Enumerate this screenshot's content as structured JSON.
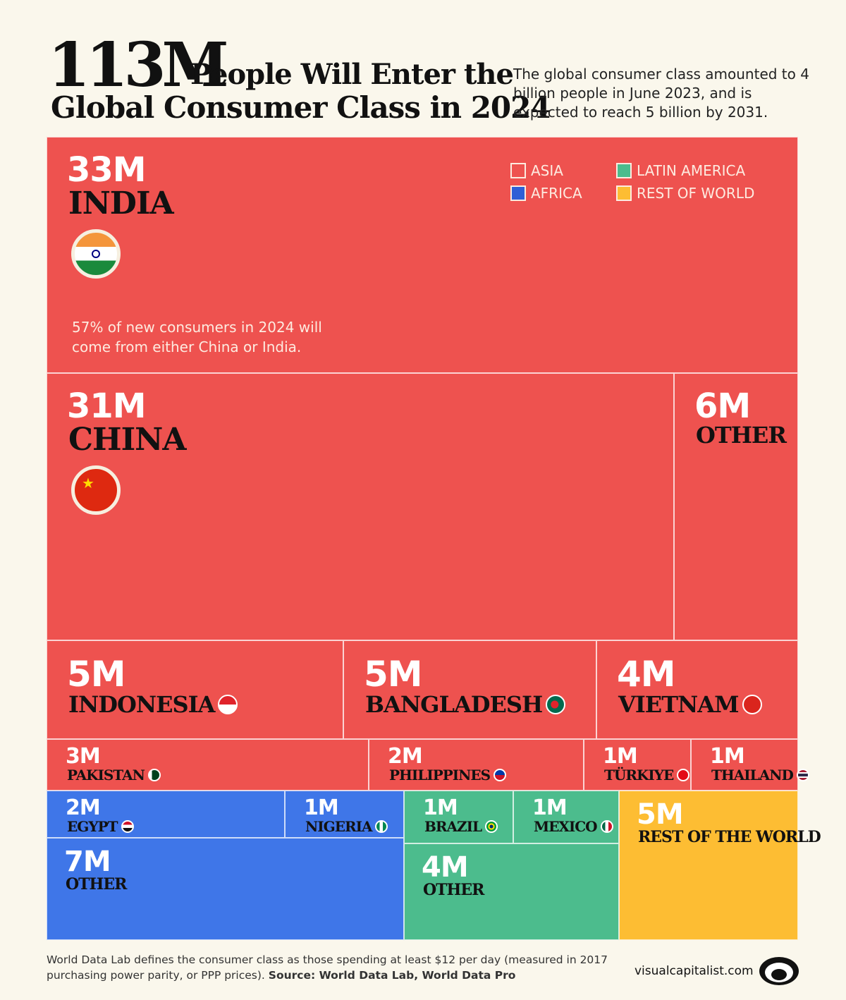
{
  "header": {
    "big": "113M",
    "line1": "People Will Enter the",
    "line2": "Global Consumer Class in 2024",
    "subtitle": "The global consumer class amounted to 4 billion people in June 2023, and is expected to reach 5 billion by 2031."
  },
  "legend": [
    {
      "label": "ASIA",
      "color": "#ee524f"
    },
    {
      "label": "LATIN AMERICA",
      "color": "#4cbc8d"
    },
    {
      "label": "AFRICA",
      "color": "#2f5fd6"
    },
    {
      "label": "REST OF WORLD",
      "color": "#fdbd33"
    }
  ],
  "note": "57% of new consumers in 2024 will come from either China or India.",
  "colors": {
    "asia": "#ee524f",
    "africa": "#3f76e8",
    "latin_america": "#4cbc8d",
    "rest_of_world": "#fdbd33"
  },
  "chart_data": {
    "type": "treemap",
    "unit": "M",
    "items": [
      {
        "value_label": "33M",
        "value": 33,
        "name": "INDIA",
        "region": "asia"
      },
      {
        "value_label": "31M",
        "value": 31,
        "name": "CHINA",
        "region": "asia"
      },
      {
        "value_label": "6M",
        "value": 6,
        "name": "OTHER",
        "region": "asia"
      },
      {
        "value_label": "5M",
        "value": 5,
        "name": "INDONESIA",
        "region": "asia"
      },
      {
        "value_label": "5M",
        "value": 5,
        "name": "BANGLADESH",
        "region": "asia"
      },
      {
        "value_label": "4M",
        "value": 4,
        "name": "VIETNAM",
        "region": "asia"
      },
      {
        "value_label": "3M",
        "value": 3,
        "name": "PAKISTAN",
        "region": "asia"
      },
      {
        "value_label": "2M",
        "value": 2,
        "name": "PHILIPPINES",
        "region": "asia"
      },
      {
        "value_label": "1M",
        "value": 1,
        "name": "TÜRKIYE",
        "region": "asia"
      },
      {
        "value_label": "1M",
        "value": 1,
        "name": "THAILAND",
        "region": "asia"
      },
      {
        "value_label": "2M",
        "value": 2,
        "name": "EGYPT",
        "region": "africa"
      },
      {
        "value_label": "1M",
        "value": 1,
        "name": "NIGERIA",
        "region": "africa"
      },
      {
        "value_label": "7M",
        "value": 7,
        "name": "OTHER",
        "region": "africa"
      },
      {
        "value_label": "1M",
        "value": 1,
        "name": "BRAZIL",
        "region": "latin_america"
      },
      {
        "value_label": "1M",
        "value": 1,
        "name": "MEXICO",
        "region": "latin_america"
      },
      {
        "value_label": "4M",
        "value": 4,
        "name": "OTHER",
        "region": "latin_america"
      },
      {
        "value_label": "5M",
        "value": 5,
        "name": "REST OF THE WORLD",
        "region": "rest_of_world"
      }
    ]
  },
  "footer": {
    "text": "World Data Lab defines the consumer class as those spending at least $12 per day (measured in 2017 purchasing power parity, or PPP prices).",
    "source": "Source: World Data Lab, World Data Pro",
    "brand": "visualcapitalist.com"
  }
}
